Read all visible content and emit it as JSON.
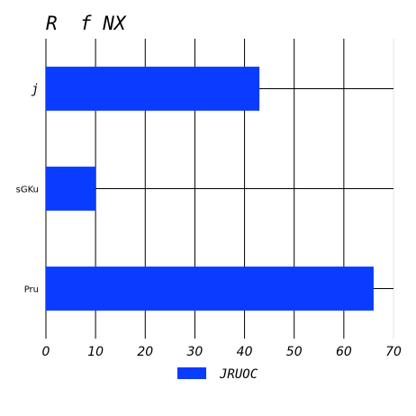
{
  "chart_data": {
    "type": "bar",
    "orientation": "horizontal",
    "title": "R  f NX",
    "categories": [
      "j",
      "sGKu",
      "Pru"
    ],
    "series": [
      {
        "name": "JRUOC",
        "values": [
          43,
          10,
          66
        ]
      }
    ],
    "xlim": [
      0,
      70
    ],
    "xticks": [
      "0",
      "10",
      "20",
      "30",
      "40",
      "50",
      "60",
      "70"
    ],
    "xlabel": "",
    "ylabel": "",
    "grid": true,
    "legend_position": "bottom-center",
    "colors": {
      "bar": "#0a3cff",
      "grid": "#000000"
    }
  }
}
